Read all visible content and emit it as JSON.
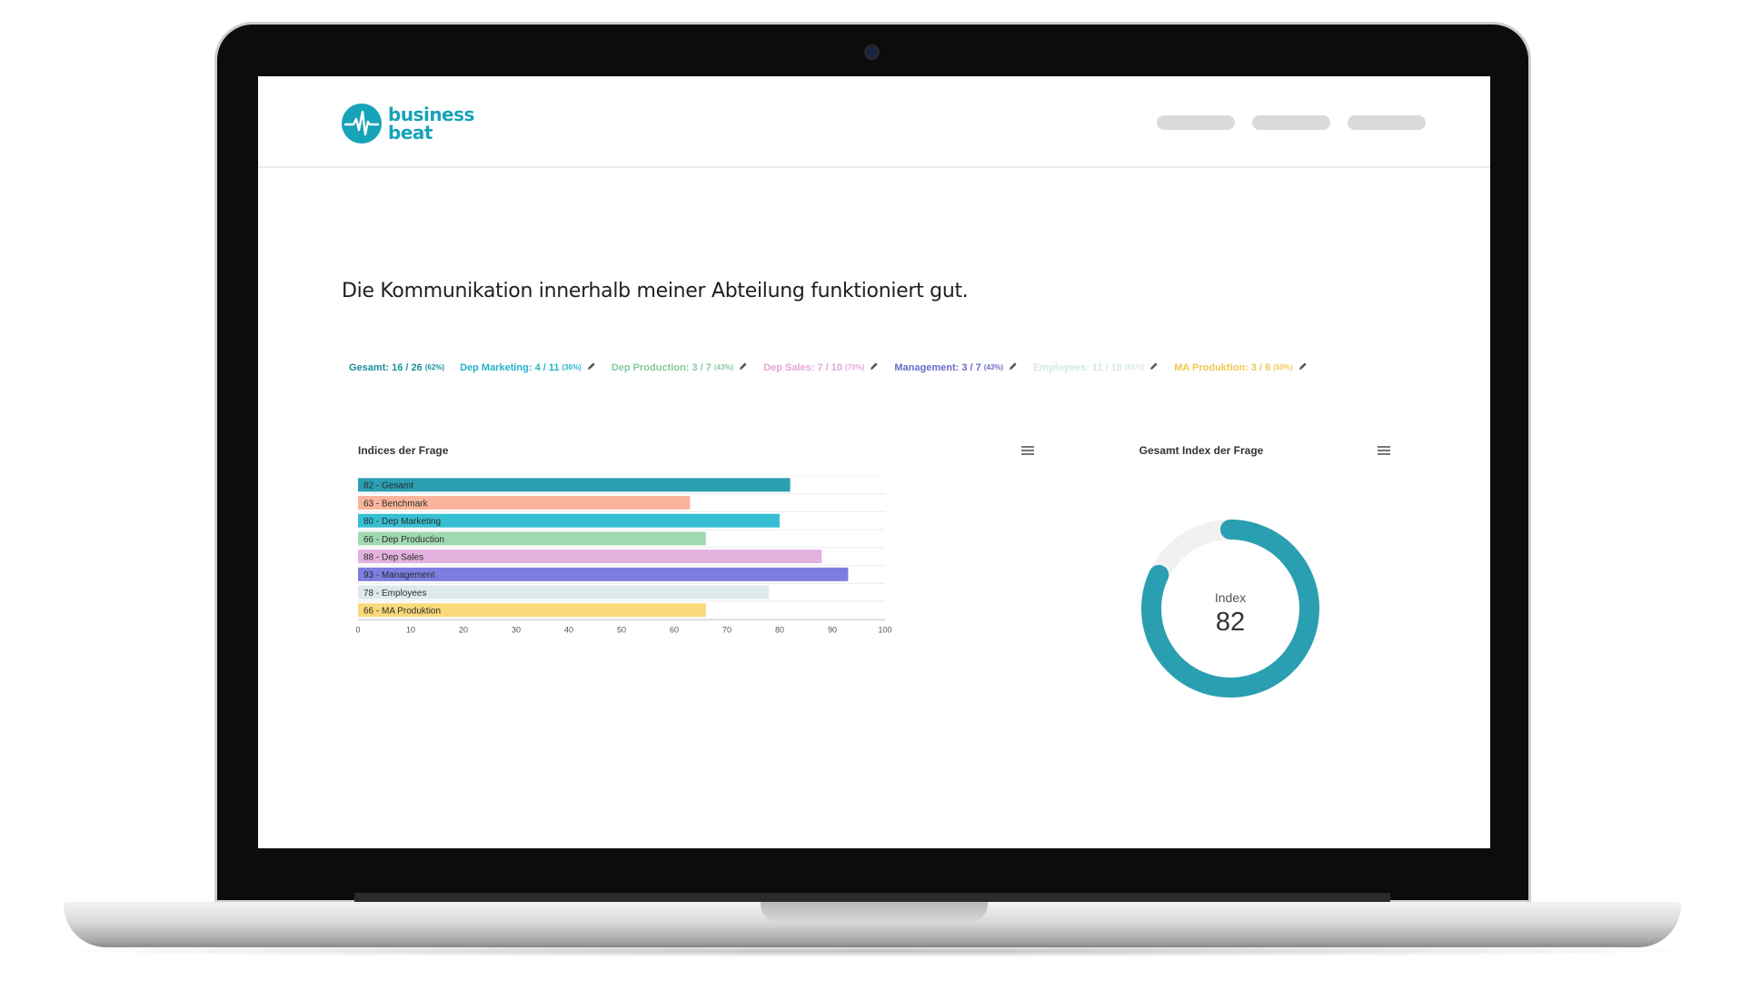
{
  "app": {
    "logo_line1": "business",
    "logo_line2": "beat",
    "logo_icon": "heartbeat-icon",
    "brand_color": "#17a3b8"
  },
  "question": "Die Kommunikation innerhalb meiner Abteilung funktioniert gut.",
  "legend": [
    {
      "label": "Gesamt: 16 / 26",
      "pct": "(62%)",
      "color": "#1d8e9c",
      "editable": false
    },
    {
      "label": "Dep Marketing: 4 / 11",
      "pct": "(36%)",
      "color": "#26b3c9",
      "editable": true
    },
    {
      "label": "Dep Production: 3 / 7",
      "pct": "(43%)",
      "color": "#84c9a0",
      "editable": true
    },
    {
      "label": "Dep Sales: 7 / 10",
      "pct": "(70%)",
      "color": "#e4a5d9",
      "editable": true
    },
    {
      "label": "Management: 3 / 7",
      "pct": "(43%)",
      "color": "#6b6bcc",
      "editable": true
    },
    {
      "label": "Employees: 11 / 18",
      "pct": "(61%)",
      "color": "#d3e6ea",
      "editable": true
    },
    {
      "label": "MA Produktion: 3 / 6",
      "pct": "(50%)",
      "color": "#f0c852",
      "editable": true
    }
  ],
  "bar_panel": {
    "title": "Indices der Frage",
    "menu_icon": "hamburger-icon"
  },
  "donut_panel": {
    "title": "Gesamt Index der Frage",
    "menu_icon": "hamburger-icon",
    "center_label": "Index",
    "center_value": "82"
  },
  "chart_data": [
    {
      "type": "bar",
      "orientation": "horizontal",
      "categories": [
        "82 - Gesamt",
        "63 - Benchmark",
        "80 - Dep Marketing",
        "66 - Dep Production",
        "88 - Dep Sales",
        "93 - Management",
        "78 - Employees",
        "66 - MA Produktion"
      ],
      "values": [
        82,
        63,
        80,
        66,
        88,
        93,
        78,
        66
      ],
      "colors": [
        "#2a9fb1",
        "#f9b49b",
        "#36bfd2",
        "#a0d9b2",
        "#e3b1dd",
        "#7d7de0",
        "#dde9ec",
        "#f9d97a"
      ],
      "xlim": [
        0,
        100
      ],
      "xticks": [
        0,
        10,
        20,
        30,
        40,
        50,
        60,
        70,
        80,
        90,
        100
      ],
      "grid": true
    },
    {
      "type": "pie",
      "style": "donut",
      "value": 82,
      "max": 100,
      "color": "#2a9fb1",
      "track_color": "#f1f1f1"
    }
  ]
}
